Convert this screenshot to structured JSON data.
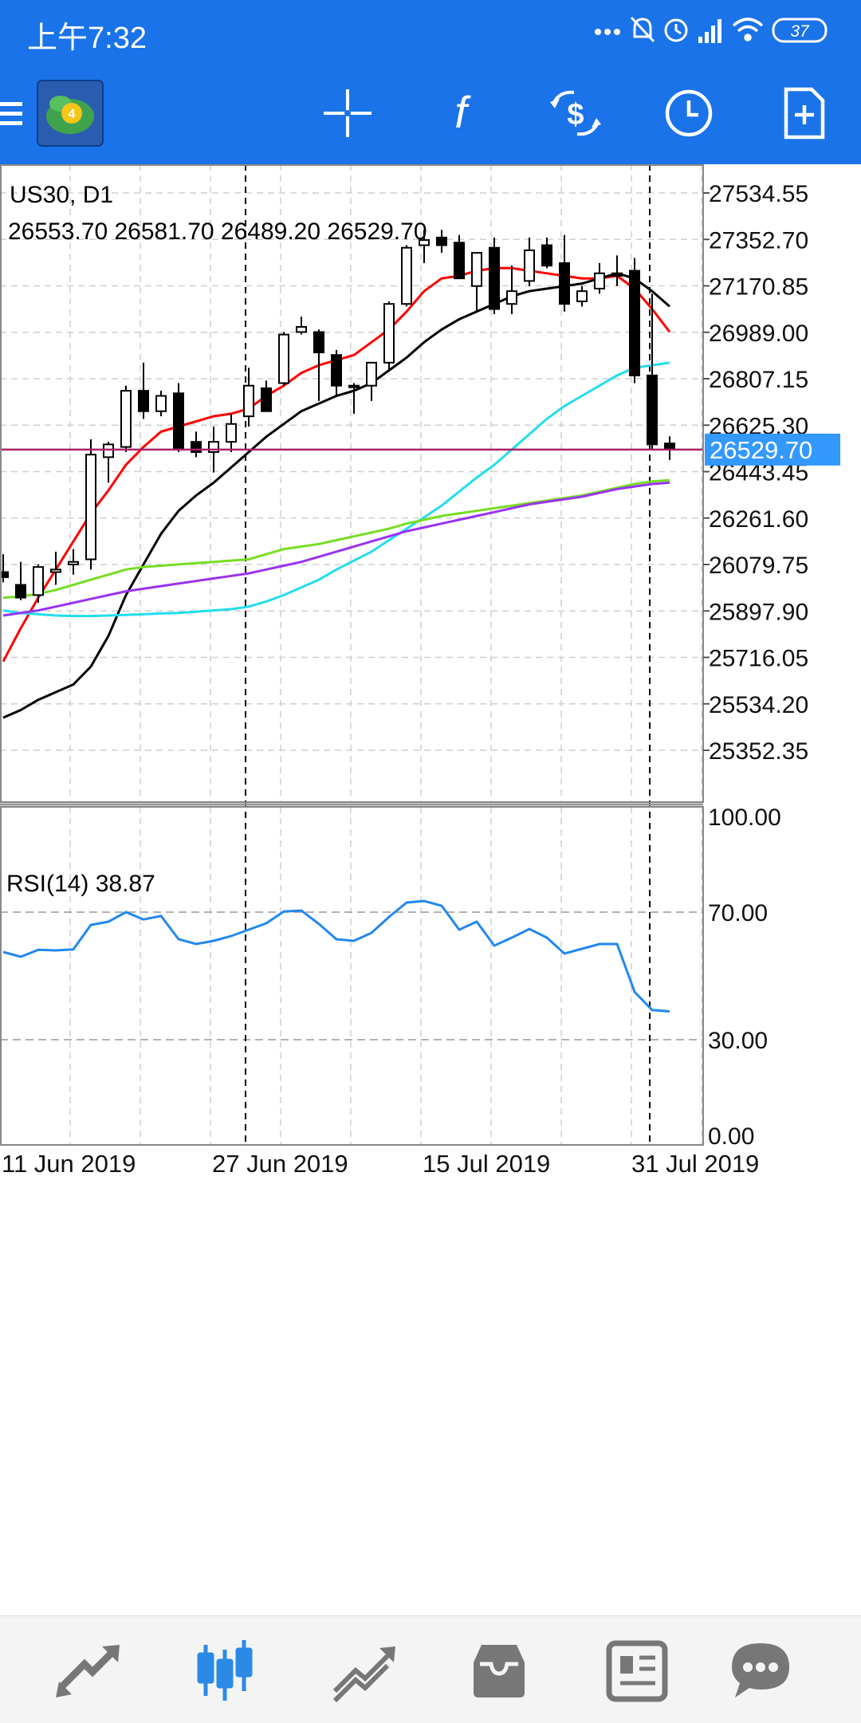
{
  "status_bar": {
    "time": "上午7:32",
    "battery": "37"
  },
  "toolbar": {
    "buttons": [
      "menu-icon",
      "metatrader-logo",
      "crosshair-icon",
      "indicators-icon",
      "trade-icon",
      "timeframe-icon",
      "templates-icon"
    ],
    "indicators_label": "f"
  },
  "chart": {
    "symbol_label": "US30, D1",
    "ohlc_label": "26553.70 26581.70 26489.20 26529.70",
    "current_price": "26529.70",
    "rsi_label": "RSI(14) 38.87",
    "colors": {
      "ma_fast": "#ff0000",
      "ma_slow": "#000000",
      "ma_cyan": "#22ddee",
      "ma_green": "#77dd22",
      "ma_purple": "#9933ee",
      "rsi_line": "#2288ee",
      "price_line": "#aa2266",
      "price_label_bg": "#3399ff"
    }
  },
  "chart_data": [
    {
      "type": "candlestick",
      "title": "US30, D1",
      "price_ticks": [
        "27534.55",
        "27352.70",
        "27170.85",
        "26989.00",
        "26807.15",
        "26625.30",
        "26443.45",
        "26261.60",
        "26079.75",
        "25897.90",
        "25716.05",
        "25534.20",
        "25352.35"
      ],
      "x_ticks": [
        "11 Jun 2019",
        "27 Jun 2019",
        "15 Jul 2019",
        "31 Jul 2019"
      ],
      "ylim": [
        25180,
        27650
      ],
      "candles": [
        {
          "o": 26050,
          "h": 26120,
          "l": 26010,
          "c": 26030
        },
        {
          "o": 26000,
          "h": 26090,
          "l": 25940,
          "c": 25950
        },
        {
          "o": 25960,
          "h": 26080,
          "l": 25930,
          "c": 26070
        },
        {
          "o": 26050,
          "h": 26130,
          "l": 26000,
          "c": 26060
        },
        {
          "o": 26080,
          "h": 26140,
          "l": 26040,
          "c": 26090
        },
        {
          "o": 26100,
          "h": 26570,
          "l": 26060,
          "c": 26510
        },
        {
          "o": 26500,
          "h": 26560,
          "l": 26400,
          "c": 26550
        },
        {
          "o": 26540,
          "h": 26780,
          "l": 26520,
          "c": 26760
        },
        {
          "o": 26760,
          "h": 26870,
          "l": 26650,
          "c": 26680
        },
        {
          "o": 26680,
          "h": 26760,
          "l": 26660,
          "c": 26740
        },
        {
          "o": 26750,
          "h": 26790,
          "l": 26520,
          "c": 26530
        },
        {
          "o": 26560,
          "h": 26600,
          "l": 26500,
          "c": 26520
        },
        {
          "o": 26520,
          "h": 26620,
          "l": 26440,
          "c": 26560
        },
        {
          "o": 26560,
          "h": 26670,
          "l": 26520,
          "c": 26630
        },
        {
          "o": 26660,
          "h": 26850,
          "l": 26620,
          "c": 26780
        },
        {
          "o": 26770,
          "h": 26800,
          "l": 26680,
          "c": 26680
        },
        {
          "o": 26790,
          "h": 26990,
          "l": 26780,
          "c": 26980
        },
        {
          "o": 26990,
          "h": 27050,
          "l": 26980,
          "c": 27010
        },
        {
          "o": 26990,
          "h": 27000,
          "l": 26720,
          "c": 26910
        },
        {
          "o": 26900,
          "h": 26920,
          "l": 26740,
          "c": 26780
        },
        {
          "o": 26780,
          "h": 26790,
          "l": 26670,
          "c": 26780
        },
        {
          "o": 26780,
          "h": 26870,
          "l": 26720,
          "c": 26870
        },
        {
          "o": 26870,
          "h": 27110,
          "l": 26840,
          "c": 27100
        },
        {
          "o": 27100,
          "h": 27330,
          "l": 27090,
          "c": 27320
        },
        {
          "o": 27330,
          "h": 27390,
          "l": 27260,
          "c": 27350
        },
        {
          "o": 27360,
          "h": 27390,
          "l": 27300,
          "c": 27330
        },
        {
          "o": 27340,
          "h": 27370,
          "l": 27200,
          "c": 27200
        },
        {
          "o": 27170,
          "h": 27300,
          "l": 27070,
          "c": 27300
        },
        {
          "o": 27320,
          "h": 27360,
          "l": 27060,
          "c": 27080
        },
        {
          "o": 27100,
          "h": 27250,
          "l": 27060,
          "c": 27150
        },
        {
          "o": 27190,
          "h": 27360,
          "l": 27170,
          "c": 27310
        },
        {
          "o": 27330,
          "h": 27360,
          "l": 27240,
          "c": 27250
        },
        {
          "o": 27260,
          "h": 27370,
          "l": 27070,
          "c": 27100
        },
        {
          "o": 27110,
          "h": 27170,
          "l": 27090,
          "c": 27150
        },
        {
          "o": 27160,
          "h": 27260,
          "l": 27140,
          "c": 27220
        },
        {
          "o": 27220,
          "h": 27290,
          "l": 27170,
          "c": 27210
        },
        {
          "o": 27230,
          "h": 27280,
          "l": 26790,
          "c": 26820
        },
        {
          "o": 26820,
          "h": 27140,
          "l": 26530,
          "c": 26550
        },
        {
          "o": 26553.7,
          "h": 26581.7,
          "l": 26489.2,
          "c": 26529.7
        }
      ],
      "moving_averages": [
        {
          "color": "#ff0000",
          "values": [
            25700,
            25830,
            25950,
            26060,
            26170,
            26280,
            26370,
            26470,
            26540,
            26600,
            26620,
            26640,
            26660,
            26670,
            26690,
            26740,
            26780,
            26830,
            26860,
            26880,
            26900,
            26950,
            27000,
            27070,
            27150,
            27200,
            27210,
            27230,
            27240,
            27240,
            27230,
            27220,
            27210,
            27200,
            27200,
            27210,
            27160,
            27080,
            26990
          ]
        },
        {
          "color": "#000000",
          "values": [
            25480,
            25510,
            25550,
            25580,
            25610,
            25680,
            25800,
            25960,
            26080,
            26200,
            26290,
            26350,
            26400,
            26460,
            26520,
            26580,
            26630,
            26680,
            26710,
            26740,
            26760,
            26790,
            26840,
            26890,
            26950,
            27000,
            27040,
            27070,
            27100,
            27130,
            27150,
            27160,
            27170,
            27180,
            27200,
            27220,
            27200,
            27150,
            27090
          ]
        },
        {
          "color": "#22ddee",
          "values": [
            25900,
            25890,
            25885,
            25880,
            25878,
            25878,
            25880,
            25882,
            25885,
            25888,
            25890,
            25895,
            25900,
            25905,
            25915,
            25935,
            25960,
            25990,
            26020,
            26060,
            26095,
            26130,
            26175,
            26220,
            26265,
            26310,
            26365,
            26420,
            26470,
            26530,
            26590,
            26650,
            26700,
            26740,
            26780,
            26820,
            26850,
            26860,
            26870
          ]
        },
        {
          "color": "#77dd22",
          "values": [
            25950,
            25955,
            25965,
            25980,
            26000,
            26020,
            26040,
            26060,
            26070,
            26075,
            26080,
            26085,
            26090,
            26095,
            26100,
            26120,
            26140,
            26150,
            26160,
            26175,
            26190,
            26205,
            26220,
            26240,
            26255,
            26270,
            26280,
            26290,
            26300,
            26310,
            26320,
            26330,
            26340,
            26350,
            26365,
            26380,
            26395,
            26405,
            26410
          ]
        },
        {
          "color": "#9933ee",
          "values": [
            25880,
            25890,
            25900,
            25915,
            25930,
            25945,
            25960,
            25975,
            25985,
            25995,
            26005,
            26015,
            26025,
            26035,
            26045,
            26060,
            26075,
            26090,
            26110,
            26130,
            26150,
            26170,
            26190,
            26210,
            26225,
            26240,
            26255,
            26270,
            26285,
            26300,
            26315,
            26325,
            26335,
            26345,
            26360,
            26375,
            26385,
            26395,
            26400
          ]
        }
      ]
    },
    {
      "type": "line",
      "title": "RSI(14) 38.87",
      "y_ticks": [
        "100.00",
        "70.00",
        "30.00",
        "0.00"
      ],
      "ylim": [
        0,
        100
      ],
      "series": [
        {
          "values": [
            57.5,
            56,
            58.2,
            58,
            58.3,
            66,
            67,
            70,
            67.7,
            68.8,
            61.5,
            60,
            61,
            62.5,
            64.5,
            66.5,
            70.2,
            70.5,
            66.3,
            61.5,
            61,
            63.5,
            68.5,
            73,
            73.5,
            72,
            64.5,
            67,
            59.5,
            62,
            64.7,
            62,
            57,
            58.5,
            60,
            60,
            45,
            39.3,
            38.87
          ]
        }
      ]
    }
  ],
  "bottom_nav": {
    "items": [
      "quotes-icon",
      "charts-icon",
      "trade-icon",
      "history-icon",
      "news-icon",
      "chat-icon"
    ]
  }
}
